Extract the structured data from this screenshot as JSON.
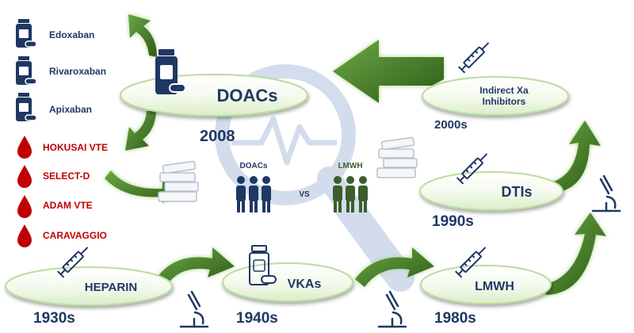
{
  "nodes": {
    "doacs": "DOACs",
    "indirect_xa": [
      "Indirect Xa",
      "Inhibitors"
    ],
    "dtis": "DTIs",
    "heparin": "HEPARIN",
    "vkas": "VKAs",
    "lmwh": "LMWH"
  },
  "years": {
    "doacs": "2008",
    "indirect_xa": "2000s",
    "dtis": "1990s",
    "heparin": "1930s",
    "vkas": "1940s",
    "lmwh": "1980s"
  },
  "drugs": [
    "Edoxaban",
    "Rivaroxaban",
    "Apixaban"
  ],
  "trials": [
    "HOKUSAI VTE",
    "SELECT-D",
    "ADAM VTE",
    "CARAVAGGIO"
  ],
  "comparison": {
    "left": "DOACs",
    "vs": "VS",
    "right": "LMWH"
  },
  "colors": {
    "arrow_green": "#3b6e22",
    "arrow_light": "#9fcf7a",
    "node_fill_light": "#f6fbf0",
    "navy": "#1f3864",
    "trial_red": "#c00000",
    "people_navy": "#1f3864",
    "people_green": "#3b5e2b",
    "watermark": "#ccd7ea"
  },
  "icons": {
    "drug": "pill-bottle-icon",
    "trial": "blood-drop-icon",
    "node_syringe": "syringe-icon",
    "node_bottle": "pill-bottle-icon",
    "lab": "microscope-icon",
    "books": "book-stack-icon",
    "people": "people-group-icon",
    "watermark": "magnifier-ecg-icon"
  }
}
